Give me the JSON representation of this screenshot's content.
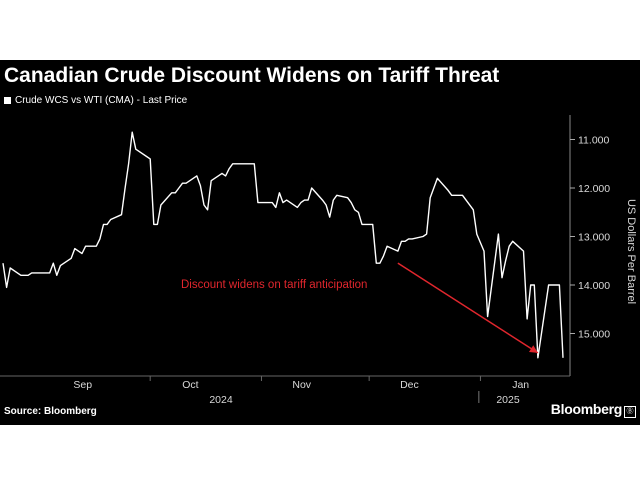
{
  "colors": {
    "background": "#000000",
    "line": "#ffffff",
    "annotation": "#e0262d",
    "text": "#ffffff",
    "axis_text": "#d9d9d9"
  },
  "chart_data": {
    "type": "line",
    "title": "Canadian Crude Discount Widens on Tariff Threat",
    "legend": [
      "Crude WCS vs WTI (CMA) - Last Price"
    ],
    "legend_position": "top-left",
    "ylabel": "US Dollars Per Barrel",
    "y_axis_side": "right",
    "y_inverted": true,
    "ylim": [
      10.5,
      15.7
    ],
    "y_ticks": [
      "11.000",
      "12.000",
      "13.000",
      "14.000",
      "15.000"
    ],
    "x_months": [
      "Sep",
      "Oct",
      "Nov",
      "Dec",
      "Jan"
    ],
    "x_years": [
      "2024",
      "2025"
    ],
    "grid": false,
    "series": [
      {
        "name": "Crude WCS vs WTI (CMA) - Last Price",
        "x": [
          "2024-08-21",
          "2024-08-22",
          "2024-08-23",
          "2024-08-26",
          "2024-08-27",
          "2024-08-28",
          "2024-08-29",
          "2024-08-30",
          "2024-09-03",
          "2024-09-04",
          "2024-09-05",
          "2024-09-06",
          "2024-09-09",
          "2024-09-10",
          "2024-09-11",
          "2024-09-12",
          "2024-09-13",
          "2024-09-16",
          "2024-09-17",
          "2024-09-18",
          "2024-09-19",
          "2024-09-20",
          "2024-09-23",
          "2024-09-24",
          "2024-09-25",
          "2024-09-26",
          "2024-09-27",
          "2024-09-30",
          "2024-10-01",
          "2024-10-02",
          "2024-10-03",
          "2024-10-04",
          "2024-10-07",
          "2024-10-08",
          "2024-10-09",
          "2024-10-10",
          "2024-10-11",
          "2024-10-14",
          "2024-10-15",
          "2024-10-16",
          "2024-10-17",
          "2024-10-18",
          "2024-10-21",
          "2024-10-22",
          "2024-10-23",
          "2024-10-24",
          "2024-10-25",
          "2024-10-28",
          "2024-10-29",
          "2024-10-30",
          "2024-10-31",
          "2024-11-01",
          "2024-11-04",
          "2024-11-05",
          "2024-11-06",
          "2024-11-07",
          "2024-11-08",
          "2024-11-11",
          "2024-11-12",
          "2024-11-13",
          "2024-11-14",
          "2024-11-15",
          "2024-11-18",
          "2024-11-19",
          "2024-11-20",
          "2024-11-21",
          "2024-11-22",
          "2024-11-25",
          "2024-11-26",
          "2024-11-27",
          "2024-11-28",
          "2024-11-29",
          "2024-12-02",
          "2024-12-03",
          "2024-12-04",
          "2024-12-05",
          "2024-12-06",
          "2024-12-09",
          "2024-12-10",
          "2024-12-11",
          "2024-12-12",
          "2024-12-13",
          "2024-12-16",
          "2024-12-17",
          "2024-12-18",
          "2024-12-19",
          "2024-12-20",
          "2024-12-23",
          "2024-12-24",
          "2024-12-26",
          "2024-12-27",
          "2024-12-30",
          "2024-12-31",
          "2025-01-02",
          "2025-01-03",
          "2025-01-06",
          "2025-01-07",
          "2025-01-08",
          "2025-01-09",
          "2025-01-10",
          "2025-01-13",
          "2025-01-14",
          "2025-01-15",
          "2025-01-16",
          "2025-01-17",
          "2025-01-20",
          "2025-01-21",
          "2025-01-22",
          "2025-01-23",
          "2025-01-24"
        ],
        "values": [
          13.55,
          14.05,
          13.65,
          13.8,
          13.8,
          13.8,
          13.75,
          13.75,
          13.75,
          13.55,
          13.8,
          13.6,
          13.45,
          13.25,
          13.3,
          13.35,
          13.2,
          13.2,
          13.05,
          12.75,
          12.75,
          12.65,
          12.55,
          12.0,
          11.5,
          10.85,
          11.2,
          11.35,
          11.4,
          12.75,
          12.75,
          12.35,
          12.1,
          12.1,
          12.0,
          11.9,
          11.9,
          11.75,
          11.95,
          12.35,
          12.45,
          11.85,
          11.7,
          11.75,
          11.6,
          11.5,
          11.5,
          11.5,
          11.5,
          11.5,
          12.3,
          12.3,
          12.3,
          12.4,
          12.1,
          12.3,
          12.25,
          12.4,
          12.3,
          12.25,
          12.25,
          12.0,
          12.25,
          12.35,
          12.6,
          12.25,
          12.15,
          12.2,
          12.3,
          12.45,
          12.5,
          12.75,
          12.75,
          13.55,
          13.55,
          13.4,
          13.2,
          13.3,
          13.1,
          13.1,
          13.05,
          13.05,
          13.0,
          12.95,
          12.2,
          12.0,
          11.8,
          12.05,
          12.15,
          12.15,
          12.15,
          12.45,
          12.95,
          13.3,
          14.65,
          12.95,
          13.85,
          13.5,
          13.2,
          13.1,
          13.3,
          14.7,
          14.0,
          14.0,
          15.5,
          14.0,
          14.0,
          14.0,
          14.0,
          15.5
        ]
      }
    ],
    "annotations": [
      {
        "text": "Discount widens on tariff anticipation",
        "arrow_from": [
          "2024-12-09",
          13.55
        ],
        "arrow_to": [
          "2025-01-17",
          15.4
        ]
      }
    ]
  },
  "footer": {
    "source": "Source: Bloomberg",
    "brand": "Bloomberg",
    "brand_mark": "Ⓑ"
  }
}
